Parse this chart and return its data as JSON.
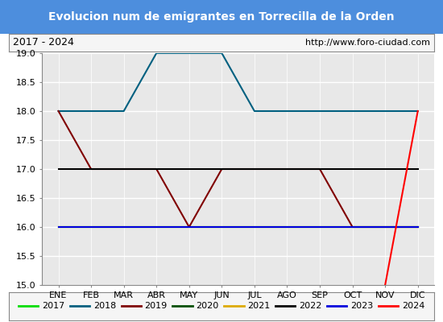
{
  "title": "Evolucion num de emigrantes en Torrecilla de la Orden",
  "subtitle_left": "2017 - 2024",
  "subtitle_right": "http://www.foro-ciudad.com",
  "title_bg_color": "#4d8edd",
  "title_text_color": "#ffffff",
  "xlabels": [
    "ENE",
    "FEB",
    "MAR",
    "ABR",
    "MAY",
    "JUN",
    "JUL",
    "AGO",
    "SEP",
    "OCT",
    "NOV",
    "DIC"
  ],
  "ylim": [
    15.0,
    19.0
  ],
  "yticks": [
    15.0,
    15.5,
    16.0,
    16.5,
    17.0,
    17.5,
    18.0,
    18.5,
    19.0
  ],
  "series": [
    {
      "year": "2017",
      "color": "#00dd00",
      "values": [
        16,
        16,
        16,
        16,
        16,
        16,
        16,
        16,
        16,
        16,
        16,
        16
      ]
    },
    {
      "year": "2018",
      "color": "#006080",
      "values": [
        18,
        18,
        18,
        19,
        19,
        19,
        18,
        18,
        18,
        18,
        18,
        18
      ]
    },
    {
      "year": "2019",
      "color": "#800000",
      "values": [
        18,
        17,
        17,
        17,
        16,
        17,
        17,
        17,
        17,
        16,
        16,
        16
      ]
    },
    {
      "year": "2020",
      "color": "#005000",
      "values": [
        16,
        16,
        16,
        16,
        16,
        16,
        16,
        16,
        16,
        16,
        16,
        16
      ]
    },
    {
      "year": "2021",
      "color": "#ddaa00",
      "values": [
        16,
        16,
        16,
        16,
        16,
        16,
        16,
        16,
        16,
        16,
        16,
        16
      ]
    },
    {
      "year": "2022",
      "color": "#000000",
      "values": [
        17,
        17,
        17,
        17,
        17,
        17,
        17,
        17,
        17,
        17,
        17,
        17
      ]
    },
    {
      "year": "2023",
      "color": "#0000dd",
      "values": [
        16,
        16,
        16,
        16,
        16,
        16,
        16,
        16,
        16,
        16,
        16,
        16
      ]
    },
    {
      "year": "2024",
      "color": "#ff0000",
      "values": [
        null,
        null,
        null,
        null,
        null,
        null,
        null,
        null,
        null,
        null,
        15.0,
        18.0
      ]
    }
  ],
  "plot_bg_color": "#e8e8e8",
  "grid_color": "#ffffff",
  "tick_fontsize": 8,
  "title_fontsize": 10,
  "legend_fontsize": 8
}
